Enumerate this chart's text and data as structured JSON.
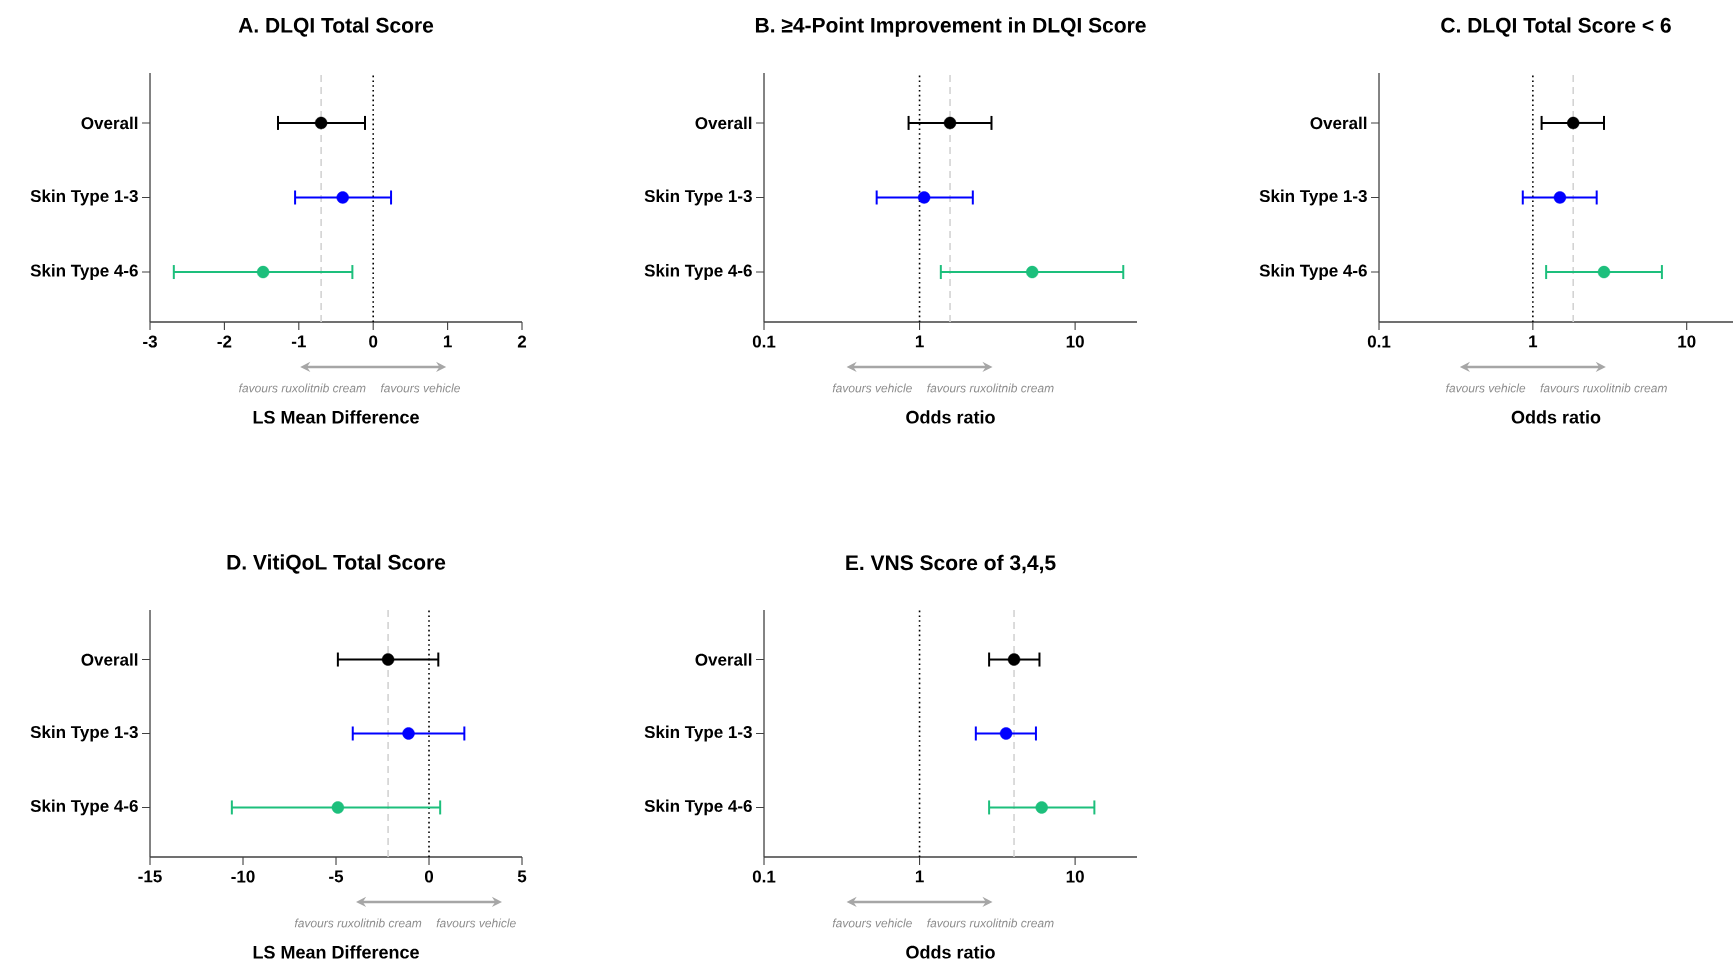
{
  "chart_data": [
    {
      "type": "scatter",
      "orientation": "horizontal",
      "title": "A. DLQI Total Score",
      "xlabel": "LS Mean Difference",
      "categories": [
        "Overall",
        "Skin Type 1-3",
        "Skin Type 4-6"
      ],
      "values": [
        -0.7,
        -0.41,
        -1.48
      ],
      "errors": [
        [
          -1.28,
          -0.11
        ],
        [
          -1.05,
          0.24
        ],
        [
          -2.68,
          -0.28
        ]
      ],
      "colors": [
        "#000000",
        "#0000ff",
        "#1dbf7c"
      ],
      "marker": "circle",
      "xlim": [
        -3,
        2
      ],
      "xticks": [
        -3,
        -2,
        -1,
        0,
        1,
        2
      ],
      "ref_lines": [
        {
          "axis": "x",
          "value": 0,
          "color": "#000000",
          "line_style": "dotted"
        },
        {
          "axis": "x",
          "value": -0.7,
          "color": "#d3d3d3",
          "line_style": "dashed"
        }
      ],
      "annotations": [
        "favours ruxolitnib cream",
        "favours vehicle"
      ]
    },
    {
      "type": "scatter",
      "orientation": "horizontal",
      "title": "B. ≥4-Point Improvement in DLQI Score",
      "xlabel": "Odds ratio",
      "categories": [
        "Overall",
        "Skin Type 1-3",
        "Skin Type 4-6"
      ],
      "values": [
        1.57,
        1.07,
        5.3
      ],
      "errors": [
        [
          0.85,
          2.9
        ],
        [
          0.53,
          2.2
        ],
        [
          1.37,
          20.4
        ]
      ],
      "colors": [
        "#000000",
        "#0000ff",
        "#1dbf7c"
      ],
      "marker": "circle",
      "log": "x",
      "xlim": [
        0.1,
        25
      ],
      "xticks": [
        0.1,
        1,
        10
      ],
      "ref_lines": [
        {
          "axis": "x",
          "value": 1,
          "color": "#000000",
          "line_style": "dotted"
        },
        {
          "axis": "x",
          "value": 1.57,
          "color": "#d3d3d3",
          "line_style": "dashed"
        }
      ],
      "annotations": [
        "favours vehicle",
        "favours ruxolitnib cream"
      ]
    },
    {
      "type": "scatter",
      "orientation": "horizontal",
      "title": "C. DLQI Total Score < 6",
      "xlabel": "Odds ratio",
      "categories": [
        "Overall",
        "Skin Type 1-3",
        "Skin Type 4-6"
      ],
      "values": [
        1.83,
        1.5,
        2.9
      ],
      "errors": [
        [
          1.14,
          2.9
        ],
        [
          0.86,
          2.6
        ],
        [
          1.22,
          6.9
        ]
      ],
      "colors": [
        "#000000",
        "#0000ff",
        "#1dbf7c"
      ],
      "marker": "circle",
      "log": "x",
      "xlim": [
        0.1,
        20
      ],
      "xticks": [
        0.1,
        1,
        10
      ],
      "ref_lines": [
        {
          "axis": "x",
          "value": 1,
          "color": "#000000",
          "line_style": "dotted"
        },
        {
          "axis": "x",
          "value": 1.83,
          "color": "#d3d3d3",
          "line_style": "dashed"
        }
      ],
      "annotations": [
        "favours vehicle",
        "favours ruxolitnib cream"
      ]
    },
    {
      "type": "scatter",
      "orientation": "horizontal",
      "title": "D. VitiQoL Total Score",
      "xlabel": "LS Mean Difference",
      "categories": [
        "Overall",
        "Skin Type 1-3",
        "Skin Type 4-6"
      ],
      "values": [
        -2.2,
        -1.1,
        -4.9
      ],
      "errors": [
        [
          -4.9,
          0.5
        ],
        [
          -4.1,
          1.9
        ],
        [
          -10.6,
          0.6
        ]
      ],
      "colors": [
        "#000000",
        "#0000ff",
        "#1dbf7c"
      ],
      "marker": "circle",
      "xlim": [
        -15,
        5
      ],
      "xticks": [
        -15,
        -10,
        -5,
        0,
        5
      ],
      "ref_lines": [
        {
          "axis": "x",
          "value": 0,
          "color": "#000000",
          "line_style": "dotted"
        },
        {
          "axis": "x",
          "value": -2.2,
          "color": "#d3d3d3",
          "line_style": "dashed"
        }
      ],
      "annotations": [
        "favours ruxolitnib cream",
        "favours vehicle"
      ]
    },
    {
      "type": "scatter",
      "orientation": "horizontal",
      "title": "E. VNS Score of 3,4,5",
      "xlabel": "Odds ratio",
      "categories": [
        "Overall",
        "Skin Type 1-3",
        "Skin Type 4-6"
      ],
      "values": [
        4.05,
        3.6,
        6.1
      ],
      "errors": [
        [
          2.8,
          5.9
        ],
        [
          2.3,
          5.6
        ],
        [
          2.8,
          13.3
        ]
      ],
      "colors": [
        "#000000",
        "#0000ff",
        "#1dbf7c"
      ],
      "marker": "circle",
      "log": "x",
      "xlim": [
        0.1,
        25
      ],
      "xticks": [
        0.1,
        1,
        10
      ],
      "ref_lines": [
        {
          "axis": "x",
          "value": 1,
          "color": "#000000",
          "line_style": "dotted"
        },
        {
          "axis": "x",
          "value": 4.05,
          "color": "#d3d3d3",
          "line_style": "dashed"
        }
      ],
      "annotations": [
        "favours vehicle",
        "favours ruxolitnib cream"
      ]
    }
  ]
}
